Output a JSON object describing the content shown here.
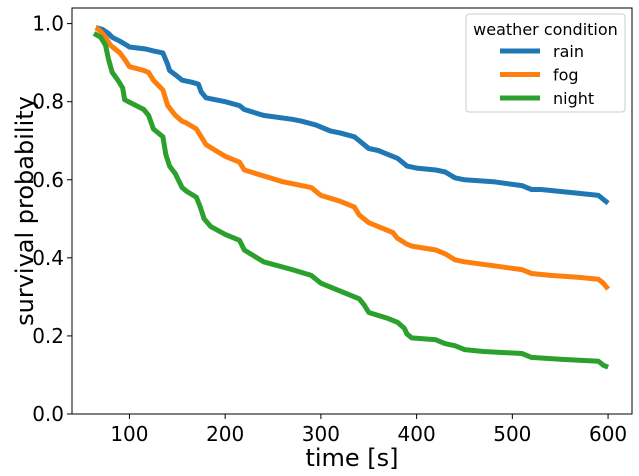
{
  "chart_data": {
    "type": "line",
    "xlabel": "time [s]",
    "ylabel": "survival probability",
    "xlim": [
      40,
      625
    ],
    "ylim": [
      0.0,
      1.04
    ],
    "xticks": [
      100,
      200,
      300,
      400,
      500,
      600
    ],
    "xtick_labels": [
      "100",
      "200",
      "300",
      "400",
      "500",
      "600"
    ],
    "yticks": [
      0.0,
      0.2,
      0.4,
      0.6,
      0.8,
      1.0
    ],
    "ytick_labels": [
      "0.0",
      "0.2",
      "0.4",
      "0.6",
      "0.8",
      "1.0"
    ],
    "grid": false,
    "legend": {
      "title": "weather condition",
      "placement": "top-right"
    },
    "series": [
      {
        "name": "rain",
        "color": "#1f77b4",
        "x": [
          65,
          72,
          78,
          82,
          90,
          97,
          100,
          117,
          125,
          135,
          140,
          142,
          150,
          155,
          165,
          172,
          175,
          180,
          200,
          215,
          220,
          240,
          270,
          280,
          295,
          300,
          310,
          320,
          335,
          340,
          350,
          360,
          370,
          380,
          385,
          390,
          400,
          420,
          430,
          440,
          450,
          480,
          510,
          520,
          530,
          570,
          590,
          595,
          600
        ],
        "y": [
          0.99,
          0.985,
          0.975,
          0.965,
          0.955,
          0.945,
          0.94,
          0.935,
          0.93,
          0.925,
          0.895,
          0.88,
          0.865,
          0.855,
          0.85,
          0.845,
          0.825,
          0.81,
          0.8,
          0.79,
          0.78,
          0.765,
          0.755,
          0.75,
          0.74,
          0.735,
          0.725,
          0.72,
          0.71,
          0.7,
          0.68,
          0.675,
          0.665,
          0.655,
          0.645,
          0.635,
          0.63,
          0.625,
          0.62,
          0.605,
          0.6,
          0.595,
          0.585,
          0.575,
          0.575,
          0.565,
          0.56,
          0.55,
          0.54
        ]
      },
      {
        "name": "fog",
        "color": "#ff7f0e",
        "x": [
          65,
          70,
          75,
          80,
          85,
          90,
          96,
          100,
          115,
          120,
          125,
          135,
          140,
          148,
          155,
          160,
          170,
          175,
          180,
          190,
          200,
          215,
          220,
          240,
          260,
          290,
          300,
          320,
          335,
          340,
          350,
          360,
          375,
          380,
          390,
          395,
          420,
          430,
          440,
          450,
          480,
          510,
          520,
          540,
          570,
          590,
          595,
          600
        ],
        "y": [
          0.99,
          0.98,
          0.965,
          0.945,
          0.935,
          0.925,
          0.905,
          0.89,
          0.88,
          0.875,
          0.855,
          0.83,
          0.79,
          0.765,
          0.75,
          0.745,
          0.73,
          0.71,
          0.69,
          0.675,
          0.66,
          0.645,
          0.625,
          0.61,
          0.595,
          0.58,
          0.56,
          0.545,
          0.53,
          0.51,
          0.49,
          0.48,
          0.465,
          0.45,
          0.435,
          0.43,
          0.42,
          0.41,
          0.395,
          0.39,
          0.38,
          0.37,
          0.36,
          0.355,
          0.35,
          0.345,
          0.335,
          0.32
        ]
      },
      {
        "name": "night",
        "color": "#2ca02c",
        "x": [
          63,
          70,
          75,
          78,
          82,
          88,
          93,
          95,
          115,
          120,
          125,
          135,
          138,
          142,
          148,
          155,
          160,
          170,
          174,
          178,
          185,
          200,
          215,
          220,
          240,
          270,
          290,
          300,
          320,
          340,
          345,
          350,
          370,
          380,
          387,
          390,
          395,
          420,
          430,
          440,
          450,
          470,
          510,
          520,
          550,
          590,
          595,
          600
        ],
        "y": [
          0.975,
          0.965,
          0.945,
          0.91,
          0.875,
          0.855,
          0.835,
          0.805,
          0.78,
          0.765,
          0.73,
          0.71,
          0.665,
          0.635,
          0.615,
          0.58,
          0.57,
          0.555,
          0.53,
          0.5,
          0.48,
          0.46,
          0.445,
          0.42,
          0.39,
          0.37,
          0.355,
          0.335,
          0.315,
          0.295,
          0.28,
          0.26,
          0.245,
          0.235,
          0.22,
          0.205,
          0.195,
          0.19,
          0.18,
          0.175,
          0.165,
          0.16,
          0.155,
          0.145,
          0.14,
          0.135,
          0.125,
          0.12
        ]
      }
    ]
  }
}
